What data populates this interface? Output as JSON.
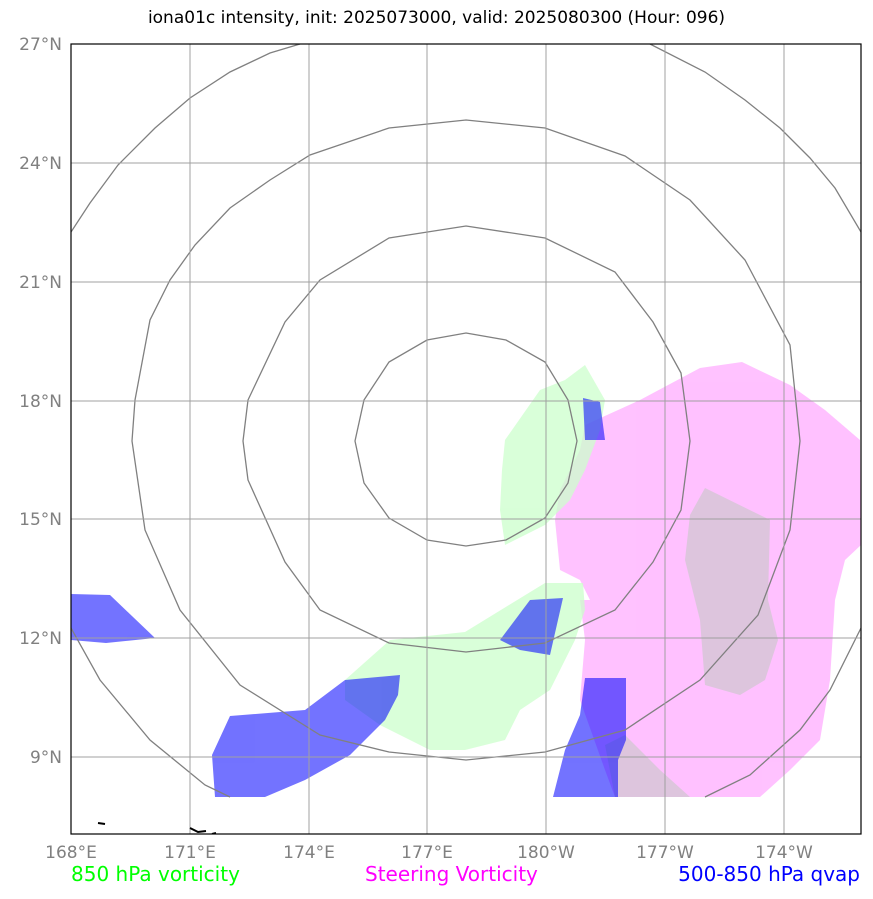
{
  "title": "iona01c intensity, init: 2025073000, valid: 2025080300 (Hour: 096)",
  "map": {
    "lon_labels": [
      "168°E",
      "171°E",
      "174°E",
      "177°E",
      "180°W",
      "177°W",
      "174°W"
    ],
    "lat_labels": [
      "27°N",
      "24°N",
      "21°N",
      "18°N",
      "15°N",
      "12°N",
      "9°N"
    ],
    "layers": [
      {
        "name": "850 hPa vorticity",
        "color": "#ccffcc"
      },
      {
        "name": "Steering Vorticity",
        "color": "#ff99ff"
      },
      {
        "name": "500-850 hPa qvap",
        "color": "#5555ff"
      }
    ]
  },
  "legend": {
    "vorticity": "850 hPa vorticity",
    "steering": "Steering Vorticity",
    "qvap": "500-850 hPa qvap"
  },
  "colors": {
    "vorticity": "#00ff00",
    "steering": "#ff00ff",
    "qvap": "#0000ff",
    "grid": "#a0a0a0",
    "rings": "#808080"
  }
}
